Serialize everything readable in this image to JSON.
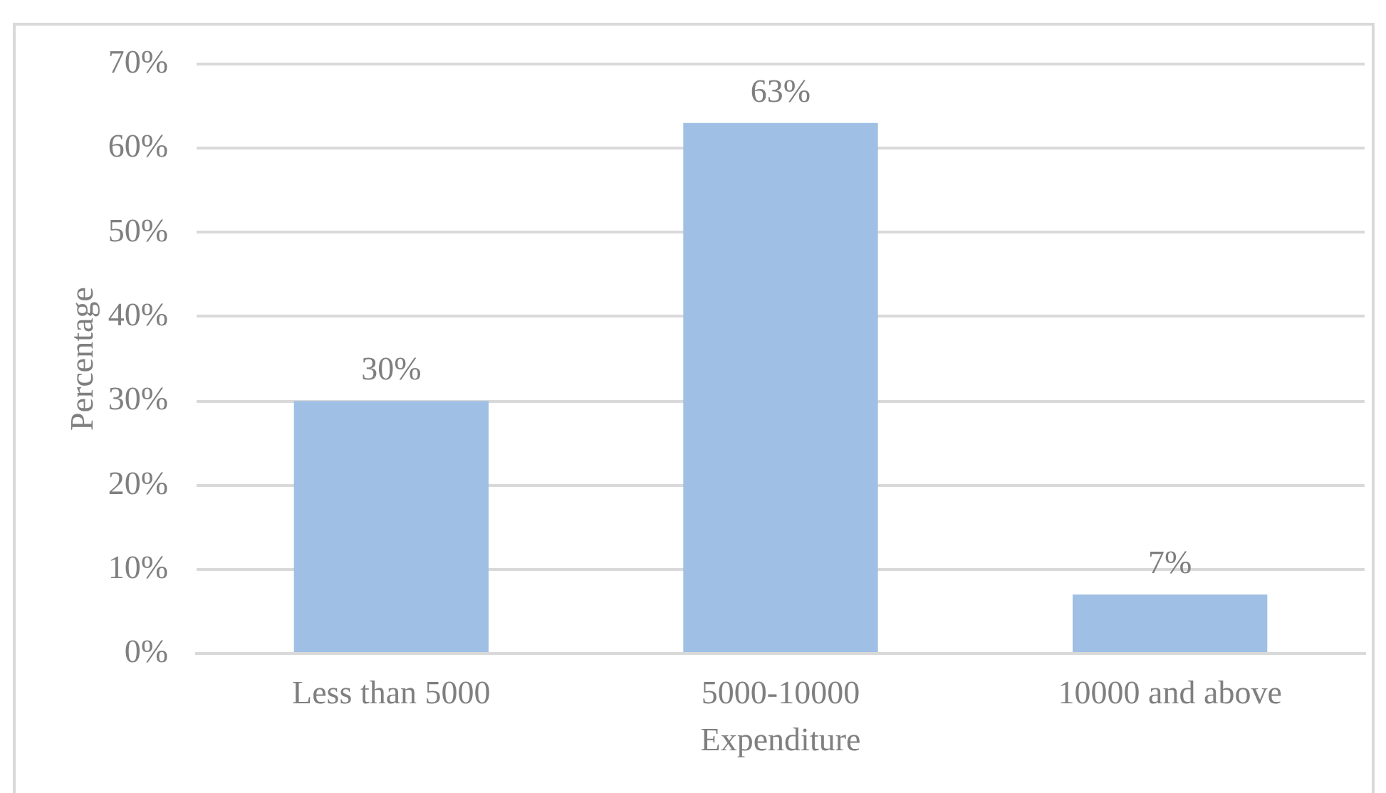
{
  "chart_data": {
    "type": "bar",
    "xlabel": "Expenditure",
    "ylabel": "Percentage",
    "categories": [
      "Less than 5000",
      "5000-10000",
      "10000 and above"
    ],
    "values": [
      30,
      63,
      7
    ],
    "value_labels": [
      "30%",
      "63%",
      "7%"
    ],
    "color": "#a0bfe4",
    "ylim": [
      0,
      70
    ],
    "yticks": [
      {
        "value": 0,
        "label": "0%"
      },
      {
        "value": 10,
        "label": "10%"
      },
      {
        "value": 20,
        "label": "20%"
      },
      {
        "value": 30,
        "label": "30%"
      },
      {
        "value": 40,
        "label": "40%"
      },
      {
        "value": 50,
        "label": "50%"
      },
      {
        "value": 60,
        "label": "60%"
      },
      {
        "value": 70,
        "label": "70%"
      }
    ],
    "grid": "y",
    "legend": false
  }
}
